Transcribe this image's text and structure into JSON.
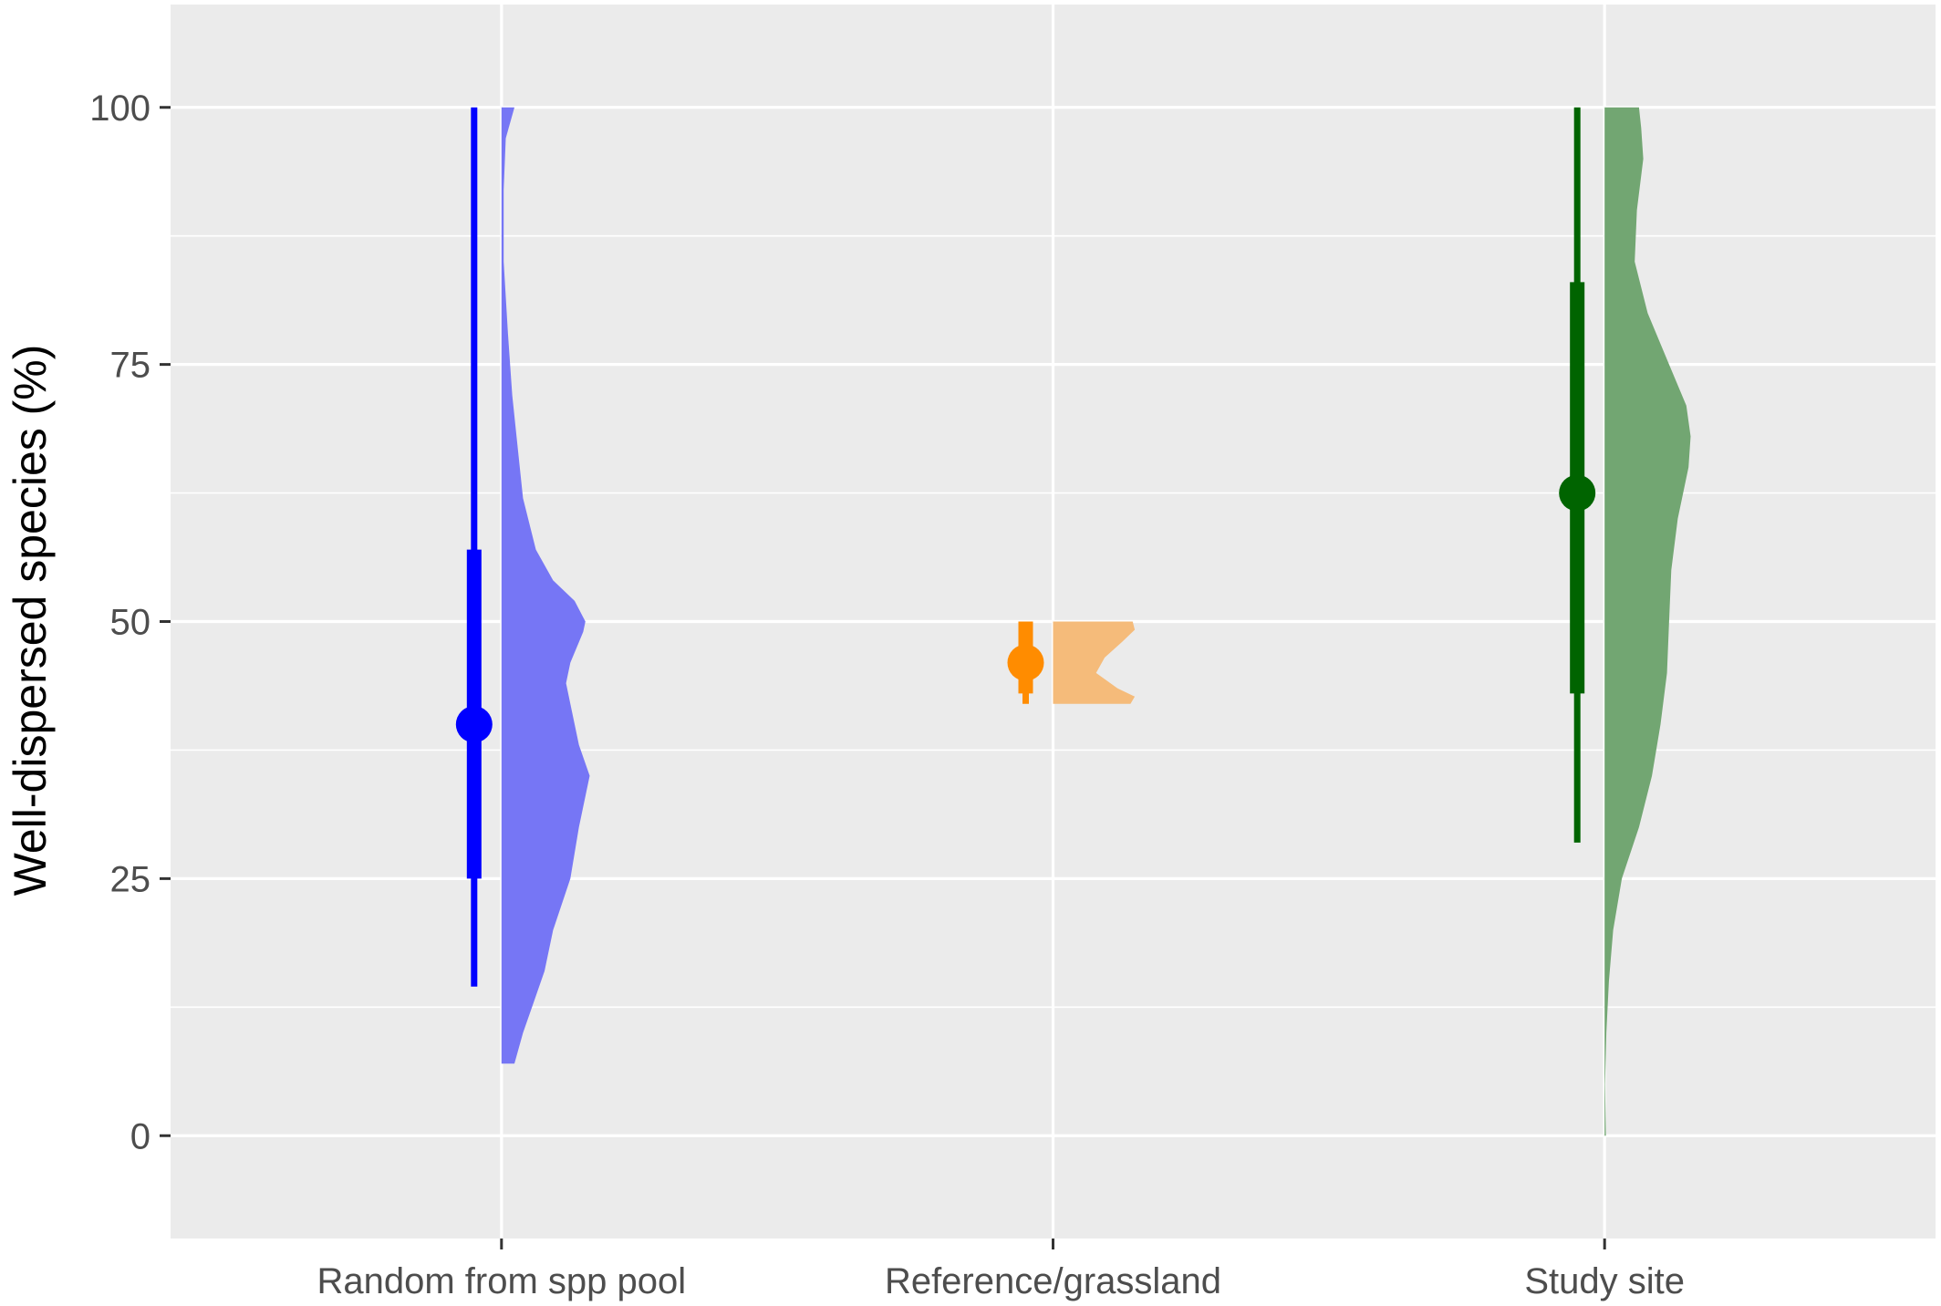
{
  "chart_data": {
    "type": "raincloud",
    "ylabel": "Well-dispersed species (%)",
    "xlabel": "",
    "ylim": [
      -10,
      110
    ],
    "yticks": [
      0,
      25,
      50,
      75,
      100
    ],
    "ytick_labels": [
      "0",
      "25",
      "50",
      "75",
      "100"
    ],
    "grid": true,
    "categories": [
      "Random from spp pool",
      "Reference/grassland",
      "Study site"
    ],
    "series": [
      {
        "category": "Random from spp pool",
        "color": "#0000ff",
        "fill": "#7676f5",
        "median": 40,
        "interval_inner": [
          25,
          57
        ],
        "interval_outer": [
          14.5,
          100
        ],
        "density": [
          [
            7,
            0.03
          ],
          [
            10,
            0.05
          ],
          [
            13,
            0.075
          ],
          [
            16,
            0.1
          ],
          [
            20,
            0.12
          ],
          [
            25,
            0.16
          ],
          [
            30,
            0.18
          ],
          [
            35,
            0.205
          ],
          [
            38,
            0.18
          ],
          [
            42,
            0.16
          ],
          [
            44,
            0.15
          ],
          [
            46,
            0.16
          ],
          [
            49,
            0.19
          ],
          [
            50,
            0.195
          ],
          [
            52,
            0.17
          ],
          [
            54,
            0.12
          ],
          [
            57,
            0.08
          ],
          [
            62,
            0.05
          ],
          [
            68,
            0.035
          ],
          [
            72,
            0.025
          ],
          [
            78,
            0.015
          ],
          [
            85,
            0.005
          ],
          [
            92,
            0.005
          ],
          [
            97,
            0.01
          ],
          [
            100,
            0.03
          ]
        ]
      },
      {
        "category": "Reference/grassland",
        "color": "#ff8c00",
        "fill": "#f5bb7a",
        "median": 46,
        "interval_inner": [
          43,
          50
        ],
        "interval_outer": [
          42,
          50
        ],
        "density": [
          [
            42,
            0.18
          ],
          [
            42.7,
            0.19
          ],
          [
            43.5,
            0.15
          ],
          [
            45,
            0.1
          ],
          [
            46.5,
            0.12
          ],
          [
            48,
            0.16
          ],
          [
            49.2,
            0.19
          ],
          [
            50,
            0.185
          ]
        ]
      },
      {
        "category": "Study site",
        "color": "#006400",
        "fill": "#72a672",
        "median": 62.5,
        "interval_inner": [
          43,
          83
        ],
        "interval_outer": [
          28.5,
          100
        ],
        "density": [
          [
            0,
            0.003
          ],
          [
            5,
            0.001
          ],
          [
            10,
            0.004
          ],
          [
            15,
            0.01
          ],
          [
            20,
            0.02
          ],
          [
            25,
            0.04
          ],
          [
            30,
            0.08
          ],
          [
            35,
            0.11
          ],
          [
            40,
            0.13
          ],
          [
            45,
            0.145
          ],
          [
            50,
            0.15
          ],
          [
            55,
            0.155
          ],
          [
            60,
            0.17
          ],
          [
            65,
            0.195
          ],
          [
            68,
            0.2
          ],
          [
            71,
            0.19
          ],
          [
            75,
            0.15
          ],
          [
            80,
            0.1
          ],
          [
            85,
            0.07
          ],
          [
            90,
            0.075
          ],
          [
            95,
            0.09
          ],
          [
            98,
            0.085
          ],
          [
            100,
            0.08
          ]
        ]
      }
    ]
  }
}
